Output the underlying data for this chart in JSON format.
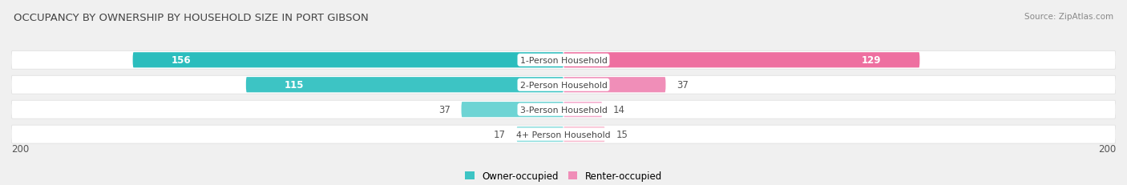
{
  "title": "OCCUPANCY BY OWNERSHIP BY HOUSEHOLD SIZE IN PORT GIBSON",
  "source": "Source: ZipAtlas.com",
  "categories": [
    "1-Person Household",
    "2-Person Household",
    "3-Person Household",
    "4+ Person Household"
  ],
  "owner_values": [
    156,
    115,
    37,
    17
  ],
  "renter_values": [
    129,
    37,
    14,
    15
  ],
  "owner_colors": [
    "#2BBDBD",
    "#3DC4C4",
    "#6DD4D4",
    "#8DDEDE"
  ],
  "renter_colors": [
    "#EE6FA0",
    "#F08EB8",
    "#F5AACC",
    "#F8BBCF"
  ],
  "max_val": 200,
  "bg_color": "#f0f0f0",
  "row_bg_color": "#ffffff",
  "title_color": "#444444",
  "source_color": "#888888",
  "center_label_color": "#444444",
  "legend_label_owner": "Owner-occupied",
  "legend_label_renter": "Renter-occupied",
  "legend_owner_color": "#3DC4C4",
  "legend_renter_color": "#F08EB8"
}
